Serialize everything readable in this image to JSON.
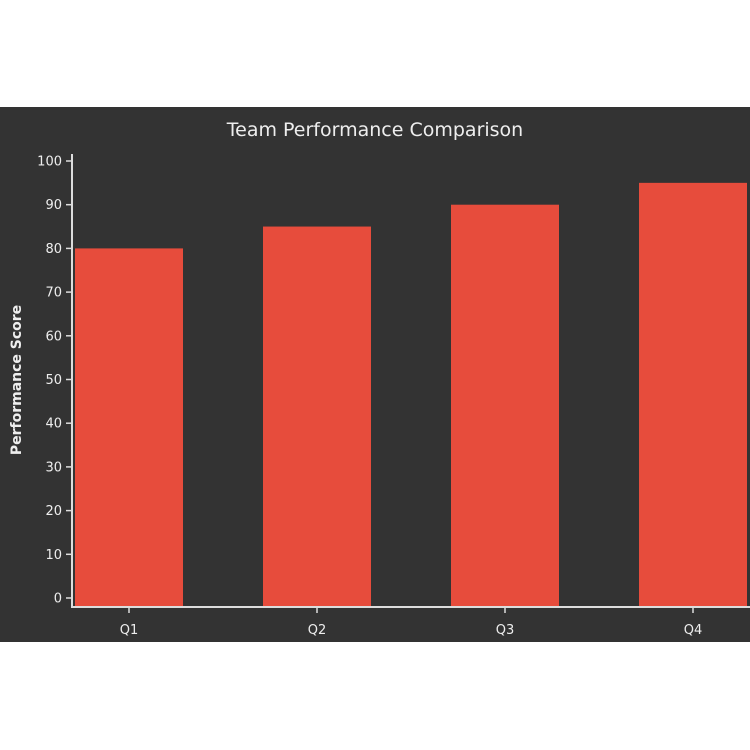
{
  "chart_data": {
    "type": "bar",
    "title": "Team Performance Comparison",
    "xlabel": "",
    "ylabel": "Performance Score",
    "categories": [
      "Q1",
      "Q2",
      "Q3",
      "Q4"
    ],
    "values": [
      80,
      85,
      90,
      95
    ],
    "ylim": [
      0,
      100
    ],
    "yticks": [
      0,
      10,
      20,
      30,
      40,
      50,
      60,
      70,
      80,
      90,
      100
    ],
    "grid": false,
    "legend": "none",
    "colors": {
      "bar": "#e74c3c",
      "background": "#333333",
      "text": "#eeeeee",
      "axis": "#dddddd"
    }
  }
}
